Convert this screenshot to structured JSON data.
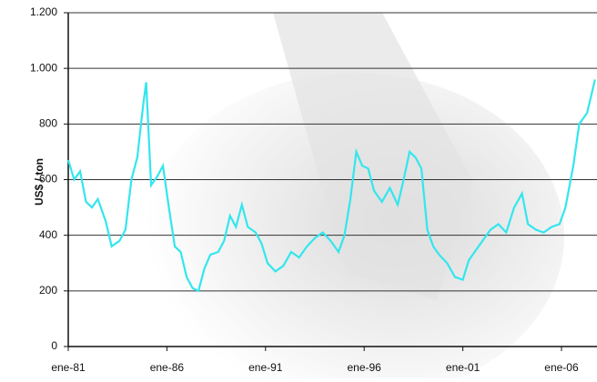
{
  "chart_data": {
    "type": "line",
    "y_label": "US$ / ton",
    "x": [
      1981.0,
      1981.3,
      1981.6,
      1981.9,
      1982.2,
      1982.5,
      1982.9,
      1983.2,
      1983.6,
      1983.9,
      1984.2,
      1984.5,
      1984.8,
      1984.95,
      1985.2,
      1985.5,
      1985.8,
      1986.1,
      1986.4,
      1986.7,
      1987.0,
      1987.3,
      1987.6,
      1987.9,
      1988.2,
      1988.6,
      1988.9,
      1989.2,
      1989.5,
      1989.8,
      1990.1,
      1990.5,
      1990.8,
      1991.1,
      1991.5,
      1991.9,
      1992.3,
      1992.7,
      1993.1,
      1993.5,
      1993.9,
      1994.3,
      1994.7,
      1995.0,
      1995.3,
      1995.6,
      1995.9,
      1996.2,
      1996.5,
      1996.9,
      1997.3,
      1997.7,
      1998.0,
      1998.3,
      1998.6,
      1998.9,
      1999.2,
      1999.5,
      1999.8,
      2000.2,
      2000.6,
      2001.0,
      2001.3,
      2001.6,
      2002.0,
      2002.4,
      2002.8,
      2003.2,
      2003.6,
      2004.0,
      2004.3,
      2004.7,
      2005.1,
      2005.5,
      2005.9,
      2006.2,
      2006.6,
      2006.9,
      2007.3,
      2007.7
    ],
    "series": [
      {
        "name": "US$ / ton",
        "color": "#33e6ee",
        "values": [
          670,
          600,
          630,
          520,
          500,
          530,
          450,
          360,
          380,
          420,
          600,
          680,
          870,
          950,
          580,
          610,
          650,
          500,
          360,
          340,
          250,
          210,
          200,
          280,
          330,
          340,
          380,
          470,
          430,
          510,
          430,
          410,
          370,
          300,
          270,
          290,
          340,
          320,
          360,
          390,
          410,
          380,
          340,
          400,
          530,
          700,
          650,
          640,
          560,
          520,
          570,
          510,
          600,
          700,
          680,
          640,
          420,
          360,
          330,
          300,
          250,
          240,
          310,
          340,
          380,
          420,
          440,
          410,
          500,
          550,
          440,
          420,
          410,
          430,
          440,
          500,
          650,
          800,
          840,
          960
        ]
      }
    ],
    "xlim": [
      1981,
      2007.8
    ],
    "xticks": [
      {
        "value": 1981,
        "label": "ene-81"
      },
      {
        "value": 1986,
        "label": "ene-86"
      },
      {
        "value": 1991,
        "label": "ene-91"
      },
      {
        "value": 1996,
        "label": "ene-96"
      },
      {
        "value": 2001,
        "label": "ene-01"
      },
      {
        "value": 2006,
        "label": "ene-06"
      }
    ],
    "ylim": [
      0,
      1200
    ],
    "yticks": [
      0,
      200,
      400,
      600,
      800,
      {
        "value": 1000,
        "label": "1.000"
      },
      {
        "value": 1200,
        "label": "1.200"
      }
    ],
    "grid": true
  }
}
